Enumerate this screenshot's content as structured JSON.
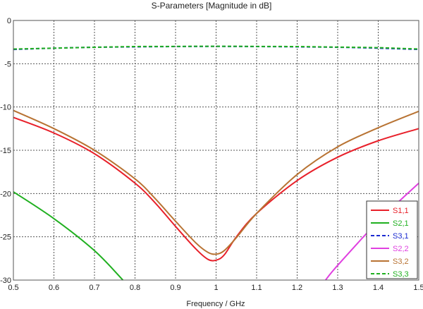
{
  "chart_data": {
    "type": "line",
    "title": "S-Parameters [Magnitude in dB]",
    "xlabel": "Frequency / GHz",
    "ylabel": "",
    "xlim": [
      0.5,
      1.5
    ],
    "ylim": [
      -30,
      0
    ],
    "xticks": [
      "0.5",
      "0.6",
      "0.7",
      "0.8",
      "0.9",
      "1",
      "1.1",
      "1.2",
      "1.3",
      "1.4",
      "1.5"
    ],
    "yticks": [
      "0",
      "-5",
      "-10",
      "-15",
      "-20",
      "-25",
      "-30"
    ],
    "grid": true,
    "legend_position": "bottom-right",
    "series": [
      {
        "name": "S1,1",
        "color": "#e8202a",
        "dash": "solid",
        "x": [
          0.5,
          0.6,
          0.7,
          0.8,
          0.85,
          0.9,
          0.95,
          0.98,
          1.0,
          1.02,
          1.05,
          1.1,
          1.2,
          1.3,
          1.4,
          1.5
        ],
        "y": [
          -11.2,
          -13.0,
          -15.4,
          -18.8,
          -21.1,
          -23.8,
          -26.4,
          -27.6,
          -27.7,
          -27.1,
          -25.0,
          -22.3,
          -18.5,
          -15.8,
          -13.9,
          -12.5
        ]
      },
      {
        "name": "S2,1",
        "color": "#20b020",
        "dash": "solid",
        "x": [
          0.5,
          0.6,
          0.7,
          0.77
        ],
        "y": [
          -19.8,
          -22.9,
          -26.6,
          -30.0
        ]
      },
      {
        "name": "S3,1",
        "color": "#1a2ad0",
        "dash": "dashed",
        "x": [
          0.5,
          0.6,
          0.7,
          0.8,
          0.9,
          1.0,
          1.1,
          1.2,
          1.3,
          1.4,
          1.5
        ],
        "y": [
          -3.35,
          -3.2,
          -3.1,
          -3.05,
          -3.02,
          -3.0,
          -3.02,
          -3.05,
          -3.1,
          -3.2,
          -3.35
        ]
      },
      {
        "name": "S2,2",
        "color": "#e040e0",
        "dash": "solid",
        "x": [
          1.27,
          1.3,
          1.4,
          1.5
        ],
        "y": [
          -30.0,
          -28.3,
          -23.2,
          -18.8
        ]
      },
      {
        "name": "S3,2",
        "color": "#b87333",
        "dash": "solid",
        "x": [
          0.5,
          0.6,
          0.7,
          0.8,
          0.85,
          0.9,
          0.95,
          0.98,
          1.0,
          1.02,
          1.05,
          1.1,
          1.2,
          1.3,
          1.4,
          1.5
        ],
        "y": [
          -10.4,
          -12.5,
          -15.0,
          -18.3,
          -20.6,
          -23.2,
          -25.7,
          -26.8,
          -27.0,
          -26.6,
          -25.1,
          -22.3,
          -17.8,
          -14.6,
          -12.4,
          -10.5
        ]
      },
      {
        "name": "S3,3",
        "color": "#20b020",
        "dash": "dashed",
        "x": [
          0.5,
          0.6,
          0.7,
          0.8,
          0.9,
          1.0,
          1.1,
          1.2,
          1.3,
          1.4,
          1.5
        ],
        "y": [
          -3.3,
          -3.2,
          -3.1,
          -3.02,
          -3.0,
          -2.98,
          -3.0,
          -3.02,
          -3.08,
          -3.15,
          -3.3
        ]
      }
    ]
  }
}
